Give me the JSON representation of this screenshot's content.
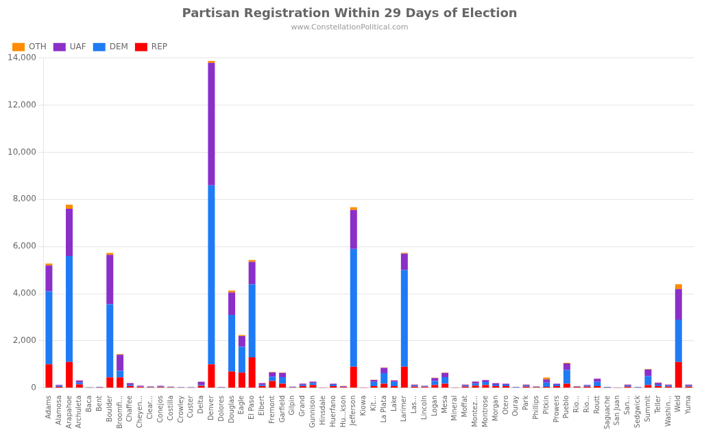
{
  "chart_data": {
    "type": "bar",
    "title": "Partisan Registration Within 29 Days of Election",
    "subtitle": "www.ConstellationPolitical.com",
    "categories": [
      "Adams",
      "Alamosa",
      "Arapahoe",
      "Archuleta",
      "Baca",
      "Bent",
      "Boulder",
      "Broomfi...",
      "Chaffee",
      "Cheyen...",
      "Clear...",
      "Conejos",
      "Costilla",
      "Crowley",
      "Custer",
      "Delta",
      "Denver",
      "Dolores",
      "Douglas",
      "Eagle",
      "El Paso",
      "Elbert",
      "Fremont",
      "Garfield",
      "Gilpin",
      "Grand",
      "Gunnison",
      "Hinsdale",
      "Huerfano",
      "Hu...kson",
      "Jefferson",
      "Kiowa",
      "Kit...",
      "La Plata",
      "Lake",
      "Larimer",
      "Las...",
      "Lincoln",
      "Logan",
      "Mesa",
      "Mineral",
      "Moffat",
      "Montez...",
      "Montrose",
      "Morgan",
      "Otero",
      "Ouray",
      "Park",
      "Phillips",
      "Pitkin",
      "Prowers",
      "Pueblo",
      "Rio...",
      "Rio...",
      "Routt",
      "Saguache",
      "San Juan",
      "San...",
      "Sedgwick",
      "Summit",
      "Teller",
      "Washin...",
      "Weld",
      "Yuma"
    ],
    "series": [
      {
        "name": "REP",
        "color": "#FF0000",
        "values": [
          1000,
          50,
          1100,
          150,
          15,
          25,
          450,
          450,
          80,
          40,
          25,
          40,
          25,
          20,
          20,
          90,
          1000,
          15,
          700,
          650,
          1300,
          80,
          300,
          180,
          25,
          80,
          120,
          5,
          80,
          40,
          900,
          5,
          80,
          180,
          80,
          900,
          60,
          40,
          120,
          180,
          5,
          60,
          100,
          120,
          80,
          80,
          15,
          60,
          35,
          50,
          80,
          180,
          40,
          60,
          80,
          20,
          5,
          60,
          20,
          120,
          80,
          60,
          1100,
          60
        ]
      },
      {
        "name": "DEM",
        "color": "#1F7BF5",
        "values": [
          3100,
          40,
          4500,
          80,
          8,
          15,
          3100,
          280,
          40,
          15,
          15,
          25,
          15,
          8,
          8,
          40,
          7600,
          8,
          2400,
          1100,
          3100,
          40,
          180,
          280,
          15,
          40,
          90,
          3,
          60,
          20,
          5000,
          3,
          180,
          450,
          180,
          4100,
          40,
          25,
          180,
          280,
          3,
          40,
          90,
          130,
          60,
          60,
          15,
          40,
          15,
          180,
          60,
          580,
          20,
          40,
          180,
          15,
          3,
          40,
          15,
          380,
          60,
          40,
          1800,
          40
        ]
      },
      {
        "name": "UAF",
        "color": "#8B2FC9",
        "values": [
          1100,
          40,
          2000,
          80,
          8,
          8,
          2100,
          680,
          80,
          40,
          25,
          25,
          15,
          8,
          8,
          130,
          5200,
          15,
          950,
          450,
          950,
          80,
          180,
          180,
          15,
          60,
          60,
          3,
          40,
          20,
          1650,
          3,
          80,
          220,
          60,
          700,
          40,
          25,
          120,
          180,
          3,
          40,
          80,
          80,
          60,
          40,
          15,
          40,
          15,
          130,
          40,
          280,
          15,
          30,
          130,
          15,
          3,
          40,
          8,
          280,
          80,
          40,
          1300,
          40
        ]
      },
      {
        "name": "OTH",
        "color": "#FF8C00",
        "values": [
          80,
          5,
          180,
          8,
          2,
          2,
          80,
          25,
          8,
          4,
          4,
          4,
          2,
          2,
          2,
          8,
          80,
          2,
          80,
          40,
          80,
          8,
          15,
          15,
          2,
          8,
          8,
          1,
          4,
          4,
          120,
          1,
          8,
          20,
          8,
          40,
          4,
          4,
          12,
          15,
          1,
          4,
          8,
          8,
          6,
          4,
          2,
          4,
          2,
          80,
          4,
          25,
          2,
          3,
          12,
          2,
          1,
          4,
          1,
          25,
          8,
          4,
          200,
          4
        ]
      }
    ],
    "stacked": true,
    "ylim": [
      0,
      14000
    ],
    "yticks": [
      0,
      {
        "value": 2000,
        "label": "2,000"
      },
      {
        "value": 4000,
        "label": "4,000"
      },
      {
        "value": 6000,
        "label": "6,000"
      },
      {
        "value": 8000,
        "label": "8,000"
      },
      {
        "value": 10000,
        "label": "10,000"
      },
      {
        "value": 12000,
        "label": "12,000"
      },
      {
        "value": 14000,
        "label": "14,000"
      }
    ],
    "grid": true,
    "legend": "upper left"
  }
}
